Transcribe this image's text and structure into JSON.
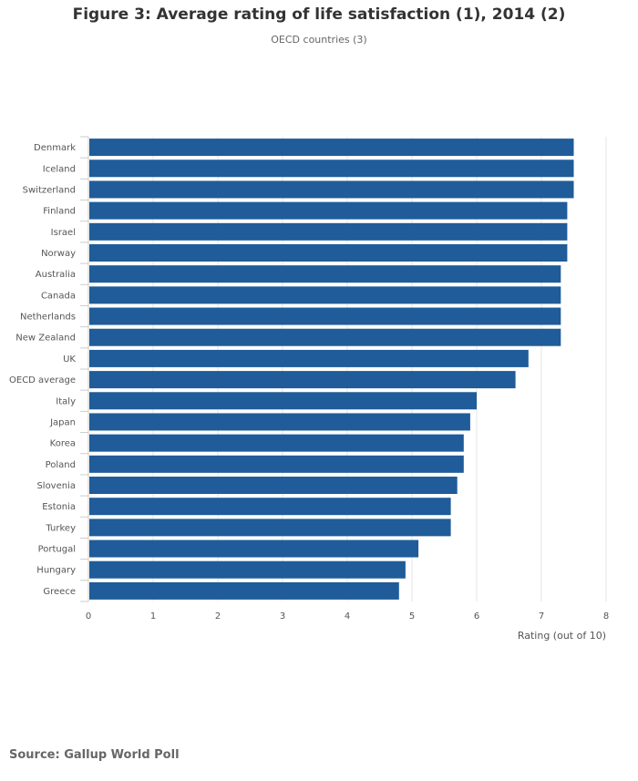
{
  "chart_data": {
    "type": "bar",
    "orientation": "horizontal",
    "title": "Figure 3: Average rating of life satisfaction (1), 2014 (2)",
    "subtitle": "OECD countries (3)",
    "xlabel": "Rating (out of 10)",
    "ylabel": "",
    "xlim": [
      0,
      8
    ],
    "ticks": [
      "0",
      "1",
      "2",
      "3",
      "4",
      "5",
      "6",
      "7",
      "8"
    ],
    "grid": true,
    "bar_color": "#1f5c99",
    "categories": [
      "Denmark",
      "Iceland",
      "Switzerland",
      "Finland",
      "Israel",
      "Norway",
      "Australia",
      "Canada",
      "Netherlands",
      "New Zealand",
      "UK",
      "OECD average",
      "Italy",
      "Japan",
      "Korea",
      "Poland",
      "Slovenia",
      "Estonia",
      "Turkey",
      "Portugal",
      "Hungary",
      "Greece"
    ],
    "values": [
      7.5,
      7.5,
      7.5,
      7.4,
      7.4,
      7.4,
      7.3,
      7.3,
      7.3,
      7.3,
      6.8,
      6.6,
      6.0,
      5.9,
      5.8,
      5.8,
      5.7,
      5.6,
      5.6,
      5.1,
      4.9,
      4.8
    ]
  },
  "footer": {
    "source": "Source: Gallup World Poll"
  }
}
